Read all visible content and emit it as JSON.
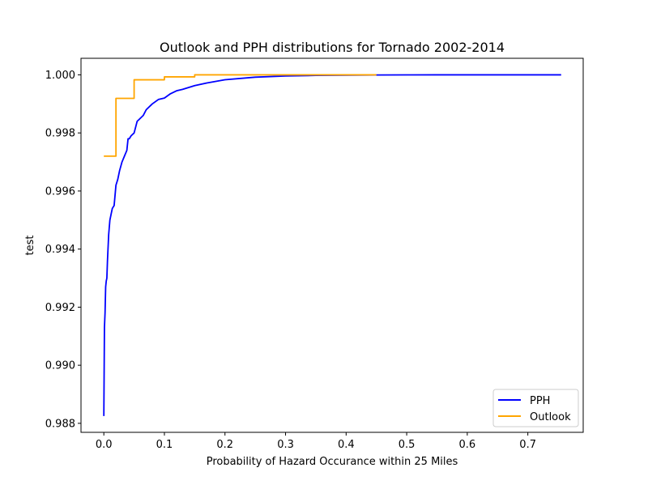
{
  "chart_data": {
    "type": "line",
    "title": "Outlook and PPH distributions for Tornado 2002-2014",
    "xlabel": "Probability of Hazard Occurance within 25 Miles",
    "ylabel": "test",
    "xlim": [
      -0.0377,
      0.7914
    ],
    "ylim": [
      0.98769,
      1.00057
    ],
    "xticks": [
      0.0,
      0.1,
      0.2,
      0.3,
      0.4,
      0.5,
      0.6,
      0.7
    ],
    "xtick_labels": [
      "0.0",
      "0.1",
      "0.2",
      "0.3",
      "0.4",
      "0.5",
      "0.6",
      "0.7"
    ],
    "yticks": [
      0.988,
      0.99,
      0.992,
      0.994,
      0.996,
      0.998,
      1.0
    ],
    "ytick_labels": [
      "0.988",
      "0.990",
      "0.992",
      "0.994",
      "0.996",
      "0.998",
      "1.000"
    ],
    "grid": false,
    "legend_position": "lower right",
    "series": [
      {
        "name": "PPH",
        "color": "#0000ff",
        "x": [
          0.0,
          0.001,
          0.002,
          0.003,
          0.004,
          0.005,
          0.006,
          0.008,
          0.01,
          0.012,
          0.014,
          0.017,
          0.02,
          0.023,
          0.026,
          0.03,
          0.034,
          0.038,
          0.04,
          0.042,
          0.045,
          0.05,
          0.055,
          0.06,
          0.065,
          0.07,
          0.08,
          0.09,
          0.1,
          0.11,
          0.12,
          0.13,
          0.15,
          0.17,
          0.2,
          0.25,
          0.3,
          0.35,
          0.4,
          0.45,
          0.5,
          0.55,
          0.6,
          0.65,
          0.7,
          0.755
        ],
        "y": [
          0.98825,
          0.9913,
          0.9918,
          0.9927,
          0.9929,
          0.993,
          0.9936,
          0.9945,
          0.995,
          0.9952,
          0.9954,
          0.9955,
          0.9962,
          0.9964,
          0.9967,
          0.997,
          0.9972,
          0.9974,
          0.9978,
          0.9978,
          0.9979,
          0.998,
          0.9984,
          0.9985,
          0.9986,
          0.9988,
          0.999,
          0.99915,
          0.9992,
          0.99935,
          0.99945,
          0.9995,
          0.99963,
          0.99972,
          0.99983,
          0.99992,
          0.99996,
          0.99998,
          0.99999,
          0.999995,
          0.999998,
          1.0,
          1.0,
          1.0,
          1.0,
          1.0
        ]
      },
      {
        "name": "Outlook",
        "color": "#ffa500",
        "x": [
          0.0,
          0.02,
          0.02,
          0.05,
          0.05,
          0.1,
          0.1,
          0.15,
          0.15,
          0.45
        ],
        "y": [
          0.9972,
          0.9972,
          0.99919,
          0.99919,
          0.99983,
          0.99983,
          0.99993,
          0.99993,
          1.0,
          1.0
        ]
      }
    ]
  }
}
